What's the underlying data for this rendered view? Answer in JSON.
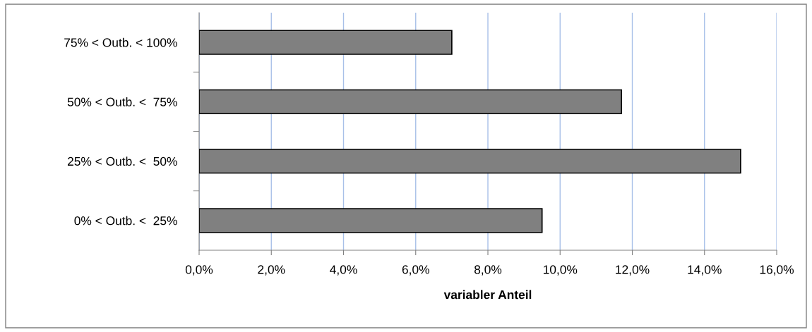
{
  "chart_data": {
    "type": "bar",
    "orientation": "horizontal",
    "xlabel": "variabler Anteil",
    "categories": [
      "75% < Outb. < 100%",
      "50% < Outb. <  75%",
      "25% < Outb. <  50%",
      "0% < Outb. <  25%"
    ],
    "values": [
      7.0,
      11.7,
      15.0,
      9.5
    ],
    "color": "#808080",
    "xlim": [
      0,
      16
    ],
    "xticks": [
      {
        "value": 0,
        "label": "0,0%"
      },
      {
        "value": 2,
        "label": "2,0%"
      },
      {
        "value": 4,
        "label": "4,0%"
      },
      {
        "value": 6,
        "label": "6,0%"
      },
      {
        "value": 8,
        "label": "8,0%"
      },
      {
        "value": 10,
        "label": "10,0%"
      },
      {
        "value": 12,
        "label": "12,0%"
      },
      {
        "value": 14,
        "label": "14,0%"
      },
      {
        "value": 16,
        "label": "16,0%"
      }
    ],
    "grid": "x",
    "legend": false
  }
}
